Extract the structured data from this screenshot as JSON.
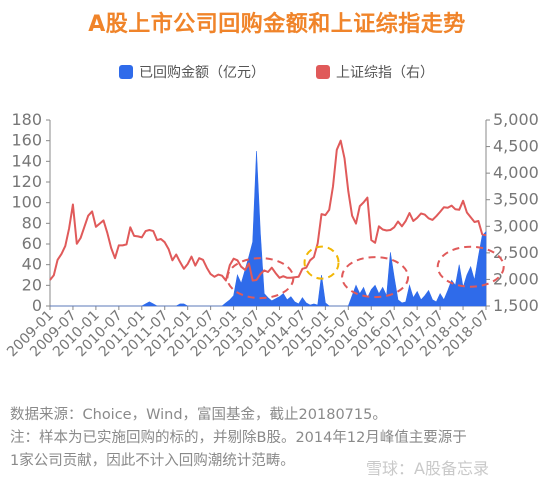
{
  "title": "A股上市公司回购金额和上证综指走势",
  "legend": [
    {
      "label": "已回购金额（亿元）",
      "color": "#2f6bea"
    },
    {
      "label": "上证综指（右）",
      "color": "#e05a5a"
    }
  ],
  "notes": [
    "数据来源：Choice，Wind，富国基金，截止20180715。",
    "注：样本为已实施回购的标的，并剔除B股。2014年12月峰值主要源于",
    "1家公司贡献，因此不计入回购潮统计范畴。"
  ],
  "watermark": "雪球：A股备忘录",
  "colors": {
    "title": "#f0842a",
    "bar": "#2f6bea",
    "line": "#e05a5a",
    "circle_red": "#e05a5a",
    "circle_yellow": "#f2b705"
  },
  "chart_data": {
    "type": "area",
    "x_ticks": [
      "2009-01",
      "2009-07",
      "2010-01",
      "2010-07",
      "2011-01",
      "2011-07",
      "2012-01",
      "2012-07",
      "2013-01",
      "2013-07",
      "2014-01",
      "2014-07",
      "2015-01",
      "2015-07",
      "2016-01",
      "2016-07",
      "2017-01",
      "2017-07",
      "2018-01",
      "2018-07"
    ],
    "x_range": [
      "2009-01",
      "2018-07"
    ],
    "y_left": {
      "ticks": [
        0,
        20,
        40,
        60,
        80,
        100,
        120,
        140,
        160,
        180
      ],
      "ylim": [
        0,
        180
      ],
      "label": ""
    },
    "y_right": {
      "ticks": [
        "1,500",
        "2,000",
        "2,500",
        "3,000",
        "3,500",
        "4,000",
        "4,500",
        "5,000"
      ],
      "ylim": [
        1500,
        5000
      ],
      "label": ""
    },
    "series": [
      {
        "name": "已回购金额（亿元）",
        "axis": "left",
        "kind": "area",
        "points": [
          [
            "2009-01",
            0
          ],
          [
            "2011-01",
            0
          ],
          [
            "2011-02",
            2
          ],
          [
            "2011-03",
            4
          ],
          [
            "2011-04",
            2
          ],
          [
            "2011-05",
            0
          ],
          [
            "2011-10",
            0
          ],
          [
            "2011-11",
            2
          ],
          [
            "2011-12",
            2
          ],
          [
            "2012-01",
            0
          ],
          [
            "2012-10",
            0
          ],
          [
            "2012-11",
            3
          ],
          [
            "2012-12",
            6
          ],
          [
            "2013-01",
            10
          ],
          [
            "2013-02",
            30
          ],
          [
            "2013-03",
            22
          ],
          [
            "2013-04",
            35
          ],
          [
            "2013-05",
            48
          ],
          [
            "2013-06",
            62
          ],
          [
            "2013-07",
            150
          ],
          [
            "2013-08",
            70
          ],
          [
            "2013-09",
            12
          ],
          [
            "2013-10",
            8
          ],
          [
            "2013-11",
            5
          ],
          [
            "2013-12",
            7
          ],
          [
            "2014-01",
            9
          ],
          [
            "2014-02",
            12
          ],
          [
            "2014-03",
            6
          ],
          [
            "2014-04",
            9
          ],
          [
            "2014-05",
            4
          ],
          [
            "2014-06",
            2
          ],
          [
            "2014-07",
            8
          ],
          [
            "2014-08",
            3
          ],
          [
            "2014-09",
            1
          ],
          [
            "2014-10",
            2
          ],
          [
            "2014-11",
            1
          ],
          [
            "2014-12",
            30
          ],
          [
            "2015-01",
            3
          ],
          [
            "2015-02",
            0
          ],
          [
            "2015-07",
            0
          ],
          [
            "2015-08",
            10
          ],
          [
            "2015-09",
            20
          ],
          [
            "2015-10",
            12
          ],
          [
            "2015-11",
            18
          ],
          [
            "2015-12",
            8
          ],
          [
            "2016-01",
            16
          ],
          [
            "2016-02",
            20
          ],
          [
            "2016-03",
            12
          ],
          [
            "2016-04",
            18
          ],
          [
            "2016-05",
            10
          ],
          [
            "2016-06",
            52
          ],
          [
            "2016-07",
            28
          ],
          [
            "2016-08",
            6
          ],
          [
            "2016-09",
            3
          ],
          [
            "2016-10",
            4
          ],
          [
            "2016-11",
            20
          ],
          [
            "2016-12",
            8
          ],
          [
            "2017-01",
            14
          ],
          [
            "2017-02",
            6
          ],
          [
            "2017-03",
            10
          ],
          [
            "2017-04",
            15
          ],
          [
            "2017-05",
            6
          ],
          [
            "2017-06",
            4
          ],
          [
            "2017-07",
            12
          ],
          [
            "2017-08",
            6
          ],
          [
            "2017-09",
            15
          ],
          [
            "2017-10",
            25
          ],
          [
            "2017-11",
            20
          ],
          [
            "2017-12",
            40
          ],
          [
            "2018-01",
            18
          ],
          [
            "2018-02",
            30
          ],
          [
            "2018-03",
            38
          ],
          [
            "2018-04",
            25
          ],
          [
            "2018-05",
            48
          ],
          [
            "2018-06",
            68
          ],
          [
            "2018-07",
            72
          ]
        ]
      },
      {
        "name": "上证综指（右）",
        "axis": "right",
        "kind": "line",
        "points": [
          [
            "2009-01",
            1990
          ],
          [
            "2009-02",
            2080
          ],
          [
            "2009-03",
            2370
          ],
          [
            "2009-04",
            2480
          ],
          [
            "2009-05",
            2630
          ],
          [
            "2009-06",
            2960
          ],
          [
            "2009-07",
            3410
          ],
          [
            "2009-08",
            2670
          ],
          [
            "2009-09",
            2780
          ],
          [
            "2009-10",
            2990
          ],
          [
            "2009-11",
            3200
          ],
          [
            "2009-12",
            3280
          ],
          [
            "2010-01",
            2990
          ],
          [
            "2010-02",
            3050
          ],
          [
            "2010-03",
            3110
          ],
          [
            "2010-04",
            2870
          ],
          [
            "2010-05",
            2590
          ],
          [
            "2010-06",
            2400
          ],
          [
            "2010-07",
            2640
          ],
          [
            "2010-08",
            2640
          ],
          [
            "2010-09",
            2660
          ],
          [
            "2010-10",
            2980
          ],
          [
            "2010-11",
            2820
          ],
          [
            "2010-12",
            2810
          ],
          [
            "2011-01",
            2790
          ],
          [
            "2011-02",
            2910
          ],
          [
            "2011-03",
            2930
          ],
          [
            "2011-04",
            2910
          ],
          [
            "2011-05",
            2740
          ],
          [
            "2011-06",
            2760
          ],
          [
            "2011-07",
            2700
          ],
          [
            "2011-08",
            2570
          ],
          [
            "2011-09",
            2360
          ],
          [
            "2011-10",
            2470
          ],
          [
            "2011-11",
            2330
          ],
          [
            "2011-12",
            2200
          ],
          [
            "2012-01",
            2290
          ],
          [
            "2012-02",
            2430
          ],
          [
            "2012-03",
            2260
          ],
          [
            "2012-04",
            2400
          ],
          [
            "2012-05",
            2370
          ],
          [
            "2012-06",
            2220
          ],
          [
            "2012-07",
            2100
          ],
          [
            "2012-08",
            2050
          ],
          [
            "2012-09",
            2090
          ],
          [
            "2012-10",
            2070
          ],
          [
            "2012-11",
            1980
          ],
          [
            "2012-12",
            2270
          ],
          [
            "2013-01",
            2390
          ],
          [
            "2013-02",
            2360
          ],
          [
            "2013-03",
            2240
          ],
          [
            "2013-04",
            2180
          ],
          [
            "2013-05",
            2300
          ],
          [
            "2013-06",
            1980
          ],
          [
            "2013-07",
            1990
          ],
          [
            "2013-08",
            2100
          ],
          [
            "2013-09",
            2170
          ],
          [
            "2013-10",
            2140
          ],
          [
            "2013-11",
            2220
          ],
          [
            "2013-12",
            2120
          ],
          [
            "2014-01",
            2030
          ],
          [
            "2014-02",
            2060
          ],
          [
            "2014-03",
            2030
          ],
          [
            "2014-04",
            2030
          ],
          [
            "2014-05",
            2040
          ],
          [
            "2014-06",
            2050
          ],
          [
            "2014-07",
            2200
          ],
          [
            "2014-08",
            2220
          ],
          [
            "2014-09",
            2360
          ],
          [
            "2014-10",
            2420
          ],
          [
            "2014-11",
            2680
          ],
          [
            "2014-12",
            3230
          ],
          [
            "2015-01",
            3210
          ],
          [
            "2015-02",
            3310
          ],
          [
            "2015-03",
            3750
          ],
          [
            "2015-04",
            4440
          ],
          [
            "2015-05",
            4610
          ],
          [
            "2015-06",
            4280
          ],
          [
            "2015-07",
            3660
          ],
          [
            "2015-08",
            3200
          ],
          [
            "2015-09",
            3050
          ],
          [
            "2015-10",
            3380
          ],
          [
            "2015-11",
            3450
          ],
          [
            "2015-12",
            3540
          ],
          [
            "2016-01",
            2740
          ],
          [
            "2016-02",
            2690
          ],
          [
            "2016-03",
            3000
          ],
          [
            "2016-04",
            2940
          ],
          [
            "2016-05",
            2920
          ],
          [
            "2016-06",
            2930
          ],
          [
            "2016-07",
            2980
          ],
          [
            "2016-08",
            3090
          ],
          [
            "2016-09",
            3000
          ],
          [
            "2016-10",
            3100
          ],
          [
            "2016-11",
            3250
          ],
          [
            "2016-12",
            3100
          ],
          [
            "2017-01",
            3160
          ],
          [
            "2017-02",
            3240
          ],
          [
            "2017-03",
            3220
          ],
          [
            "2017-04",
            3150
          ],
          [
            "2017-05",
            3120
          ],
          [
            "2017-06",
            3190
          ],
          [
            "2017-07",
            3270
          ],
          [
            "2017-08",
            3360
          ],
          [
            "2017-09",
            3350
          ],
          [
            "2017-10",
            3390
          ],
          [
            "2017-11",
            3320
          ],
          [
            "2017-12",
            3310
          ],
          [
            "2018-01",
            3480
          ],
          [
            "2018-02",
            3260
          ],
          [
            "2018-03",
            3170
          ],
          [
            "2018-04",
            3080
          ],
          [
            "2018-05",
            3100
          ],
          [
            "2018-06",
            2850
          ],
          [
            "2018-07",
            2830
          ]
        ]
      }
    ],
    "annotations": [
      {
        "shape": "dashed-ellipse",
        "color": "red",
        "center": [
          "2013-08",
          27
        ]
      },
      {
        "shape": "dashed-ellipse",
        "color": "yellow",
        "center": [
          "2014-12",
          42
        ]
      },
      {
        "shape": "dashed-ellipse",
        "color": "red",
        "center": [
          "2016-02",
          28
        ]
      },
      {
        "shape": "dashed-ellipse",
        "color": "red",
        "center": [
          "2018-03",
          38
        ]
      }
    ],
    "grid": false,
    "legend_position": "top-center"
  }
}
